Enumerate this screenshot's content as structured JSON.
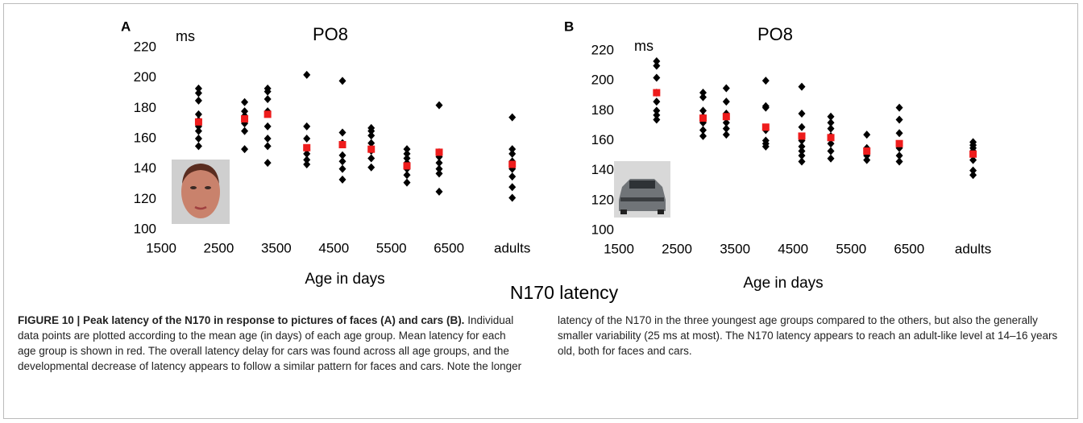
{
  "chart_data": [
    {
      "type": "scatter",
      "panel": "A",
      "title": "PO8",
      "ylabel": "ms",
      "xlabel": "Age in days",
      "xlim": [
        1500,
        7800
      ],
      "xticks": [
        1500,
        2500,
        3500,
        4500,
        5500,
        6500,
        {
          "value": 7600,
          "label": "adults"
        }
      ],
      "ylim": [
        100,
        220
      ],
      "yticks": [
        100,
        120,
        140,
        160,
        180,
        200,
        220
      ],
      "series": [
        {
          "color": "#000000",
          "x": [
            2150,
            2150,
            2150,
            2150,
            2150,
            2150,
            2150,
            2150,
            2150,
            2950,
            2950,
            2950,
            2950,
            2950,
            2950,
            3350,
            3350,
            3350,
            3350,
            3350,
            3350,
            3350,
            3350,
            4030,
            4030,
            4030,
            4030,
            4030,
            4030,
            4030,
            4650,
            4650,
            4650,
            4650,
            4650,
            4650,
            4650,
            5150,
            5150,
            5150,
            5150,
            5150,
            5150,
            5150,
            5770,
            5770,
            5770,
            5770,
            5770,
            5770,
            5770,
            6330,
            6330,
            6330,
            6330,
            6330,
            6330,
            6330,
            7600,
            7600,
            7600,
            7600,
            7600,
            7600,
            7600,
            7600
          ],
          "values": [
            193,
            190,
            185,
            176,
            172,
            168,
            165,
            160,
            155,
            184,
            178,
            175,
            170,
            165,
            153,
            193,
            191,
            186,
            178,
            168,
            160,
            155,
            144,
            202,
            168,
            160,
            153,
            150,
            146,
            143,
            198,
            164,
            157,
            149,
            145,
            140,
            133,
            167,
            165,
            162,
            157,
            152,
            147,
            141,
            153,
            150,
            147,
            144,
            140,
            136,
            131,
            182,
            151,
            148,
            144,
            140,
            137,
            125,
            174,
            153,
            150,
            145,
            140,
            135,
            128,
            121
          ]
        },
        {
          "color": "#ee1c1c",
          "x": [
            2150,
            2950,
            3350,
            4030,
            4650,
            5150,
            5770,
            6330,
            7600
          ],
          "values": [
            171,
            173,
            176,
            154,
            156,
            153,
            142,
            151,
            143
          ]
        }
      ]
    },
    {
      "type": "scatter",
      "panel": "B",
      "title": "PO8",
      "ylabel": "ms",
      "xlabel": "Age in days",
      "xlim": [
        1500,
        7800
      ],
      "xticks": [
        1500,
        2500,
        3500,
        4500,
        5500,
        6500,
        {
          "value": 7600,
          "label": "adults"
        }
      ],
      "ylim": [
        100,
        220
      ],
      "yticks": [
        100,
        120,
        140,
        160,
        180,
        200,
        220
      ],
      "series": [
        {
          "color": "#000000",
          "x": [
            2150,
            2150,
            2150,
            2150,
            2150,
            2150,
            2150,
            2150,
            2950,
            2950,
            2950,
            2950,
            2950,
            2950,
            2950,
            3350,
            3350,
            3350,
            3350,
            3350,
            3350,
            4030,
            4030,
            4030,
            4030,
            4030,
            4030,
            4030,
            4650,
            4650,
            4650,
            4650,
            4650,
            4650,
            4650,
            4650,
            5150,
            5150,
            5150,
            5150,
            5150,
            5150,
            5150,
            5770,
            5770,
            5770,
            5770,
            6330,
            6330,
            6330,
            6330,
            6330,
            6330,
            7600,
            7600,
            7600,
            7600,
            7600,
            7600,
            7600
          ],
          "values": [
            213,
            210,
            202,
            192,
            186,
            180,
            177,
            174,
            192,
            189,
            180,
            176,
            172,
            167,
            163,
            195,
            186,
            178,
            172,
            168,
            164,
            200,
            183,
            182,
            167,
            160,
            158,
            156,
            196,
            178,
            169,
            160,
            156,
            153,
            150,
            146,
            176,
            172,
            168,
            163,
            158,
            153,
            148,
            164,
            155,
            150,
            147,
            182,
            174,
            165,
            155,
            150,
            146,
            159,
            157,
            155,
            153,
            147,
            140,
            137
          ]
        },
        {
          "color": "#ee1c1c",
          "x": [
            2150,
            2950,
            3350,
            4030,
            4650,
            5150,
            5770,
            6330,
            7600
          ],
          "values": [
            192,
            175,
            176,
            169,
            163,
            162,
            153,
            158,
            151
          ]
        }
      ]
    }
  ],
  "figure_title": "N170 latency",
  "caption": {
    "heading": "FIGURE 10 | Peak latency of the N170 in response to pictures of faces (A) and cars (B).",
    "text": "Individual data points are plotted according to the mean age (in days) of each age group. Mean latency for each age group is shown in red. The overall latency delay for cars was found across all age groups, and the developmental decrease of latency appears to follow a similar pattern for faces and cars. Note the longer latency of the N170 in the three youngest age groups compared to the others, but also the generally smaller variability (25 ms at most). The N170 latency appears to reach an adult-like level at 14–16 years old, both for faces and cars."
  }
}
